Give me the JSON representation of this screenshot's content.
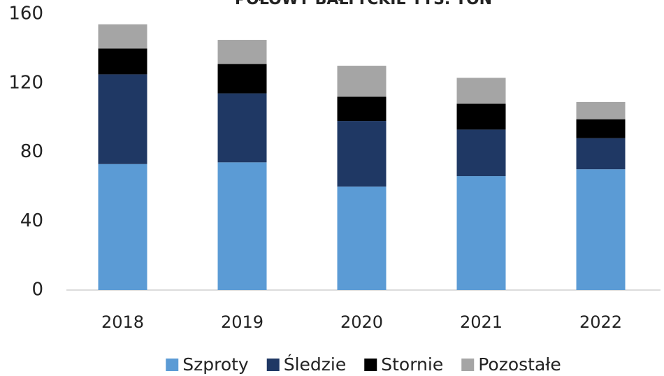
{
  "chart_data": {
    "type": "stacked_bar",
    "title": "POŁOWY BAŁTYCKIE TYS. TON",
    "categories": [
      "2018",
      "2019",
      "2020",
      "2021",
      "2022"
    ],
    "series": [
      {
        "name": "Szproty",
        "color": "#5b9bd5",
        "values": [
          73,
          74,
          60,
          66,
          70
        ]
      },
      {
        "name": "Śledzie",
        "color": "#1f3864",
        "values": [
          52,
          40,
          38,
          27,
          18
        ]
      },
      {
        "name": "Stornie",
        "color": "#000000",
        "values": [
          15,
          17,
          14,
          15,
          11
        ]
      },
      {
        "name": "Pozostałe",
        "color": "#a5a5a5",
        "values": [
          14,
          14,
          18,
          15,
          10
        ]
      }
    ],
    "ylim": [
      0,
      160
    ],
    "yticks": [
      0,
      40,
      80,
      120,
      160
    ],
    "legend": "bottom"
  }
}
